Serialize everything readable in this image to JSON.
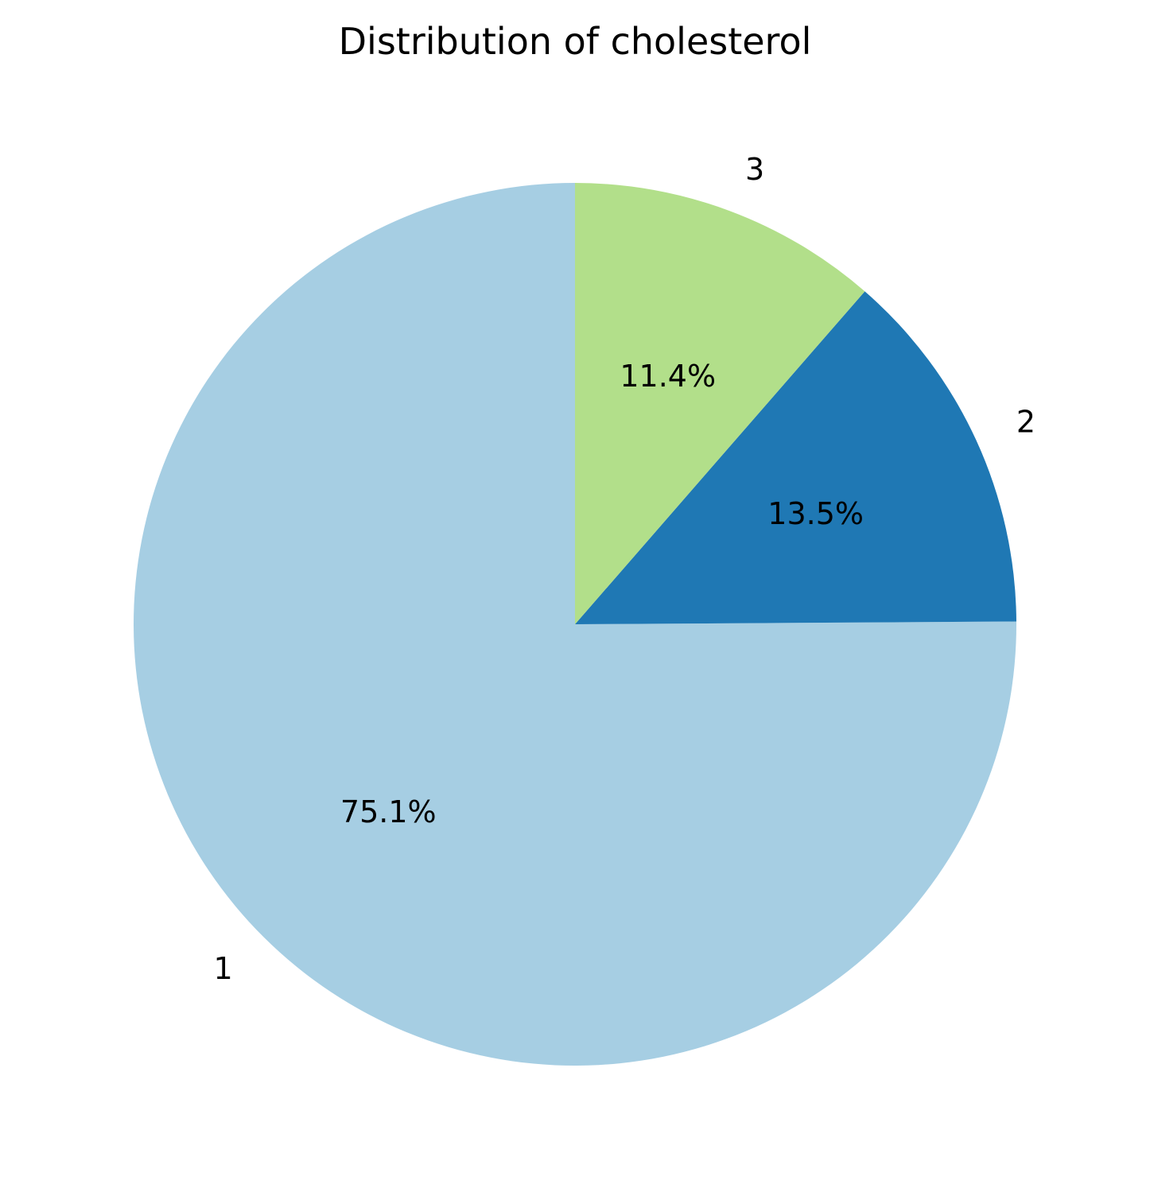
{
  "chart_data": {
    "type": "pie",
    "title": "Distribution of cholesterol",
    "slices": [
      {
        "label": "1",
        "value": 75.1,
        "pct_label": "75.1%",
        "color": "#a6cee3"
      },
      {
        "label": "2",
        "value": 13.5,
        "pct_label": "13.5%",
        "color": "#1f78b4"
      },
      {
        "label": "3",
        "value": 11.4,
        "pct_label": "11.4%",
        "color": "#b2df8a"
      }
    ],
    "start_angle_deg": 90,
    "direction": "counterclockwise",
    "legend": "none"
  }
}
